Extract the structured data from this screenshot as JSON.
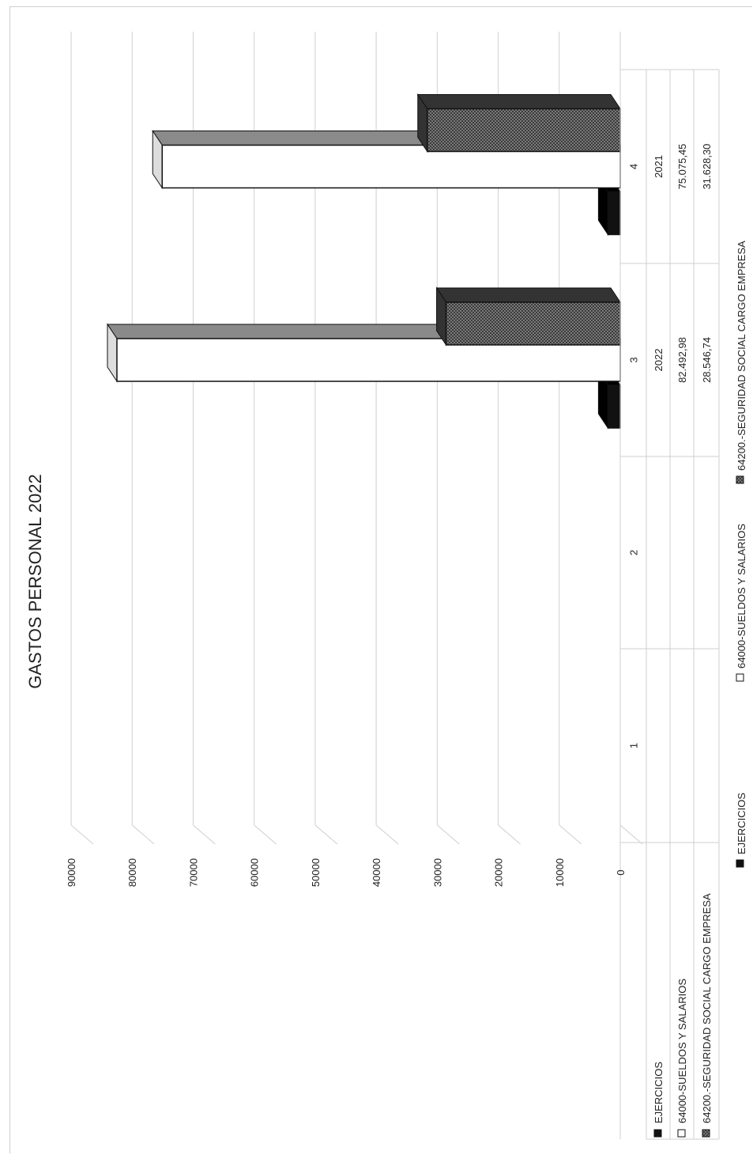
{
  "chart_data": {
    "type": "bar",
    "orientation": "rotated-90",
    "title": "GASTOS PERSONAL 2022",
    "categories": [
      "1",
      "2",
      "3",
      "4"
    ],
    "y_ticks": [
      "0",
      "10000",
      "20000",
      "30000",
      "40000",
      "50000",
      "60000",
      "70000",
      "80000",
      "90000"
    ],
    "ylim": [
      0,
      90000
    ],
    "grid": true,
    "legend_position": "bottom",
    "series": [
      {
        "name": "EJERCICIOS",
        "values": [
          null,
          null,
          2022,
          2021
        ],
        "table_values": [
          "",
          "",
          "2022",
          "2021"
        ],
        "color": "#111111",
        "pattern": "solid"
      },
      {
        "name": "64000-SUELDOS Y SALARIOS",
        "values": [
          null,
          null,
          82492.98,
          75075.45
        ],
        "table_values": [
          "",
          "",
          "82.492,98",
          "75.075,45"
        ],
        "color": "#ffffff",
        "pattern": "none"
      },
      {
        "name": "64200.-SEGURIDAD SOCIAL CARGO EMPRESA",
        "values": [
          null,
          null,
          28546.74,
          31628.3
        ],
        "table_values": [
          "",
          "",
          "28.546,74",
          "31.628,30"
        ],
        "color": "#666666",
        "pattern": "checker"
      }
    ]
  }
}
